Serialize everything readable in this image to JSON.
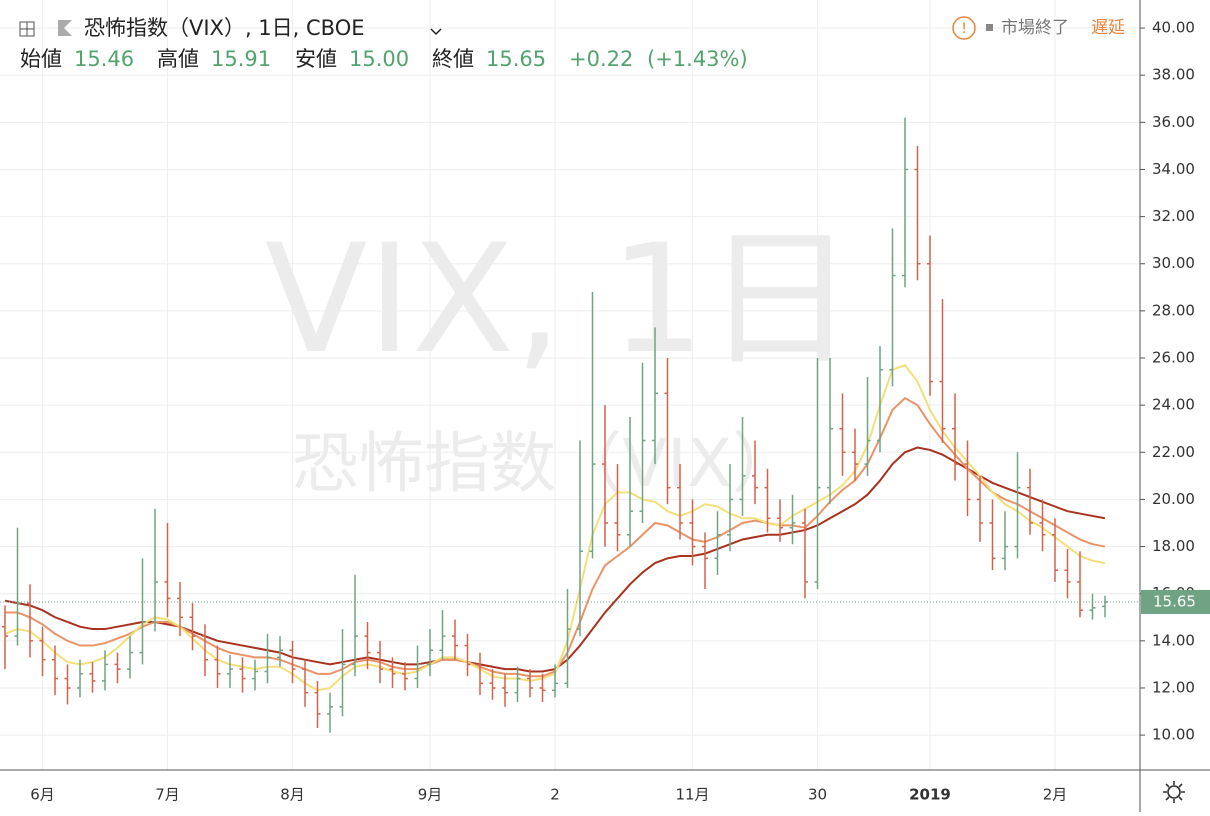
{
  "header": {
    "symbol": "恐怖指数（VIX）, 1日, CBOE",
    "open_label": "始値",
    "open": "15.46",
    "high_label": "高値",
    "high": "15.91",
    "low_label": "安値",
    "low": "15.00",
    "close_label": "終値",
    "close": "15.65",
    "change": "+0.22",
    "change_pct": "(+1.43%)",
    "status": "市場終了",
    "delay": "遅延"
  },
  "watermark": {
    "line1": "VIX, 1日",
    "line2": "恐怖指数（VIX）"
  },
  "chart_data": {
    "type": "ohlc",
    "categories": [
      null,
      null,
      null,
      "6月",
      null,
      null,
      null,
      null,
      null,
      null,
      null,
      null,
      null,
      "7月",
      null,
      null,
      null,
      null,
      null,
      null,
      null,
      null,
      null,
      "8月",
      null,
      null,
      null,
      null,
      null,
      null,
      null,
      null,
      null,
      null,
      "9月",
      null,
      null,
      null,
      null,
      null,
      null,
      null,
      null,
      null,
      "2",
      null,
      null,
      null,
      null,
      null,
      null,
      null,
      null,
      null,
      null,
      "11月",
      null,
      null,
      null,
      null,
      null,
      null,
      null,
      null,
      null,
      "30",
      null,
      null,
      null,
      null,
      null,
      null,
      null,
      null,
      "2019",
      null,
      null,
      null,
      null,
      null,
      null,
      null,
      null,
      null,
      "2月",
      null,
      null,
      null,
      null
    ],
    "open": [
      14.6,
      14.2,
      15.6,
      14.0,
      13.2,
      12.4,
      12.0,
      12.6,
      12.3,
      13.0,
      12.8,
      13.5,
      14.8,
      16.5,
      15.8,
      15.0,
      14.2,
      13.2,
      12.6,
      12.8,
      12.4,
      12.7,
      13.3,
      13.6,
      12.8,
      11.8,
      10.9,
      11.2,
      13.0,
      14.2,
      13.5,
      12.8,
      12.6,
      12.4,
      13.0,
      13.6,
      14.2,
      13.8,
      13.0,
      12.2,
      12.0,
      11.8,
      12.4,
      12.0,
      11.9,
      12.2,
      14.5,
      17.8,
      21.5,
      19.0,
      18.5,
      19.5,
      22.5,
      24.5,
      20.5,
      19.0,
      18.0,
      17.5,
      18.5,
      20.0,
      21.0,
      20.5,
      19.2,
      18.8,
      19.0,
      16.5,
      20.5,
      23.0,
      22.0,
      21.5,
      22.5,
      25.5,
      29.5,
      34.0,
      30.0,
      25.0,
      23.0,
      21.5,
      20.0,
      19.0,
      17.5,
      18.0,
      20.5,
      19.0,
      18.5,
      17.0,
      16.5,
      15.3,
      15.46
    ],
    "high": [
      15.5,
      18.8,
      16.4,
      14.6,
      13.8,
      13.0,
      13.2,
      13.1,
      13.6,
      13.5,
      14.2,
      17.5,
      19.6,
      19.0,
      16.5,
      15.6,
      14.7,
      13.8,
      13.4,
      13.3,
      13.2,
      14.3,
      14.2,
      14.0,
      13.2,
      12.3,
      11.8,
      14.5,
      16.8,
      14.8,
      14.0,
      13.3,
      13.1,
      13.8,
      14.5,
      15.3,
      14.9,
      14.3,
      13.5,
      12.8,
      12.6,
      12.9,
      12.8,
      12.6,
      13.0,
      16.2,
      22.5,
      28.8,
      24.0,
      21.5,
      23.5,
      25.8,
      27.3,
      26.0,
      21.5,
      20.0,
      18.6,
      19.5,
      21.5,
      23.5,
      22.5,
      21.3,
      20.0,
      20.2,
      19.6,
      26.0,
      26.0,
      24.5,
      23.0,
      25.2,
      26.5,
      31.5,
      36.2,
      35.0,
      31.2,
      28.5,
      24.5,
      22.5,
      21.0,
      20.0,
      19.5,
      22.0,
      21.3,
      20.0,
      19.2,
      17.9,
      17.8,
      16.0,
      15.91
    ],
    "low": [
      12.8,
      13.8,
      13.3,
      12.5,
      11.7,
      11.3,
      11.6,
      11.8,
      11.9,
      12.2,
      12.4,
      13.0,
      14.4,
      15.0,
      14.2,
      13.6,
      12.5,
      12.0,
      12.0,
      11.8,
      11.9,
      12.2,
      12.9,
      12.2,
      11.2,
      10.3,
      10.1,
      10.8,
      12.5,
      12.8,
      12.2,
      12.0,
      11.9,
      12.0,
      12.5,
      13.2,
      13.2,
      12.5,
      11.7,
      11.5,
      11.2,
      11.4,
      11.6,
      11.4,
      11.6,
      12.0,
      14.2,
      17.5,
      18.0,
      17.8,
      18.0,
      19.0,
      21.5,
      19.8,
      18.3,
      17.2,
      16.2,
      16.8,
      17.8,
      19.3,
      19.8,
      18.6,
      18.2,
      18.1,
      15.8,
      16.2,
      19.8,
      21.0,
      20.8,
      21.0,
      22.0,
      24.8,
      29.0,
      29.3,
      24.4,
      22.4,
      20.8,
      19.3,
      18.2,
      17.0,
      17.0,
      17.5,
      18.5,
      17.8,
      16.5,
      15.8,
      15.0,
      14.9,
      15.0
    ],
    "close": [
      14.2,
      15.6,
      14.0,
      13.2,
      12.4,
      12.0,
      12.6,
      12.3,
      13.0,
      12.8,
      13.5,
      14.8,
      16.5,
      15.8,
      15.0,
      14.2,
      13.2,
      12.6,
      12.8,
      12.4,
      12.7,
      13.3,
      13.6,
      12.8,
      11.8,
      10.9,
      11.2,
      13.0,
      14.2,
      13.5,
      12.8,
      12.6,
      12.4,
      13.0,
      13.6,
      14.2,
      13.8,
      13.0,
      12.2,
      12.0,
      11.8,
      12.4,
      12.0,
      11.9,
      12.2,
      14.5,
      17.8,
      21.5,
      19.0,
      18.5,
      19.5,
      22.5,
      24.5,
      20.5,
      19.0,
      18.0,
      17.5,
      18.5,
      20.0,
      21.0,
      20.5,
      19.2,
      18.8,
      19.0,
      16.5,
      20.5,
      23.0,
      22.0,
      21.5,
      22.5,
      25.5,
      29.5,
      34.0,
      30.0,
      25.0,
      23.0,
      21.5,
      20.0,
      19.0,
      17.5,
      18.0,
      20.5,
      19.0,
      18.5,
      17.0,
      16.5,
      15.3,
      15.4,
      15.65
    ],
    "up_color": "#6fa384",
    "down_color": "#d5614c",
    "series": [
      {
        "color": "#a8321e",
        "values": [
          15.7,
          15.6,
          15.5,
          15.3,
          15.0,
          14.8,
          14.6,
          14.5,
          14.5,
          14.6,
          14.7,
          14.8,
          14.8,
          14.7,
          14.6,
          14.4,
          14.2,
          14.0,
          13.9,
          13.8,
          13.7,
          13.6,
          13.5,
          13.3,
          13.2,
          13.1,
          13.0,
          13.1,
          13.2,
          13.3,
          13.2,
          13.1,
          13.0,
          13.0,
          13.1,
          13.2,
          13.2,
          13.1,
          13.0,
          12.9,
          12.8,
          12.8,
          12.7,
          12.7,
          12.8,
          13.2,
          13.8,
          14.5,
          15.2,
          15.8,
          16.4,
          16.9,
          17.3,
          17.5,
          17.6,
          17.6,
          17.7,
          17.9,
          18.1,
          18.3,
          18.4,
          18.5,
          18.5,
          18.6,
          18.7,
          18.9,
          19.2,
          19.5,
          19.8,
          20.2,
          20.8,
          21.5,
          22.0,
          22.2,
          22.1,
          21.9,
          21.6,
          21.3,
          21.0,
          20.7,
          20.5,
          20.3,
          20.1,
          19.9,
          19.7,
          19.5,
          19.4,
          19.3,
          19.2
        ]
      },
      {
        "color": "#e89468",
        "values": [
          15.2,
          15.2,
          15.0,
          14.7,
          14.3,
          14.0,
          13.8,
          13.8,
          13.9,
          14.1,
          14.3,
          14.6,
          14.8,
          14.8,
          14.6,
          14.3,
          14.0,
          13.7,
          13.5,
          13.4,
          13.3,
          13.3,
          13.2,
          13.0,
          12.8,
          12.6,
          12.6,
          12.8,
          13.1,
          13.2,
          13.1,
          12.9,
          12.8,
          12.8,
          13.0,
          13.2,
          13.2,
          13.1,
          12.9,
          12.7,
          12.6,
          12.6,
          12.5,
          12.5,
          12.7,
          13.5,
          14.8,
          16.2,
          17.2,
          17.6,
          18.0,
          18.5,
          19.0,
          18.9,
          18.6,
          18.3,
          18.2,
          18.4,
          18.7,
          19.0,
          19.1,
          19.0,
          18.9,
          18.9,
          18.8,
          19.3,
          19.9,
          20.4,
          20.8,
          21.5,
          22.6,
          23.8,
          24.3,
          24.0,
          23.2,
          22.5,
          21.9,
          21.3,
          20.8,
          20.3,
          20.0,
          19.8,
          19.5,
          19.2,
          18.9,
          18.6,
          18.3,
          18.1,
          18.0
        ]
      },
      {
        "color": "#f3df7a",
        "values": [
          14.3,
          14.5,
          14.4,
          14.0,
          13.5,
          13.1,
          13.0,
          13.1,
          13.3,
          13.7,
          14.2,
          14.7,
          15.0,
          14.9,
          14.6,
          14.1,
          13.6,
          13.2,
          13.0,
          12.9,
          12.8,
          12.9,
          12.9,
          12.6,
          12.2,
          11.9,
          12.0,
          12.5,
          12.9,
          13.0,
          12.9,
          12.7,
          12.6,
          12.7,
          13.0,
          13.3,
          13.3,
          13.1,
          12.8,
          12.5,
          12.4,
          12.4,
          12.3,
          12.4,
          12.6,
          14.0,
          16.2,
          18.5,
          19.8,
          20.3,
          20.3,
          20.0,
          19.9,
          19.5,
          19.3,
          19.5,
          19.8,
          19.7,
          19.4,
          19.2,
          19.2,
          19.0,
          18.9,
          19.3,
          19.6,
          19.9,
          20.2,
          20.6,
          21.2,
          22.3,
          24.0,
          25.5,
          25.7,
          25.0,
          23.8,
          22.9,
          22.2,
          21.6,
          21.0,
          20.3,
          19.8,
          19.5,
          19.1,
          18.8,
          18.4,
          18.0,
          17.6,
          17.4,
          17.3
        ]
      }
    ],
    "last_price": {
      "value": 15.65,
      "label": "15.65"
    },
    "ylim": [
      8.52,
      41.19
    ],
    "yticks": [
      {
        "value": 10,
        "label": "10.00"
      },
      {
        "value": 12,
        "label": "12.00"
      },
      {
        "value": 14,
        "label": "14.00"
      },
      {
        "value": 16,
        "label": "16.00"
      },
      {
        "value": 18,
        "label": "18.00"
      },
      {
        "value": 20,
        "label": "20.00"
      },
      {
        "value": 22,
        "label": "22.00"
      },
      {
        "value": 24,
        "label": "24.00"
      },
      {
        "value": 26,
        "label": "26.00"
      },
      {
        "value": 28,
        "label": "28.00"
      },
      {
        "value": 30,
        "label": "30.00"
      },
      {
        "value": 32,
        "label": "32.00"
      },
      {
        "value": 34,
        "label": "34.00"
      },
      {
        "value": 36,
        "label": "36.00"
      },
      {
        "value": 38,
        "label": "38.00"
      },
      {
        "value": 40,
        "label": "40.00"
      }
    ],
    "grid": true
  }
}
